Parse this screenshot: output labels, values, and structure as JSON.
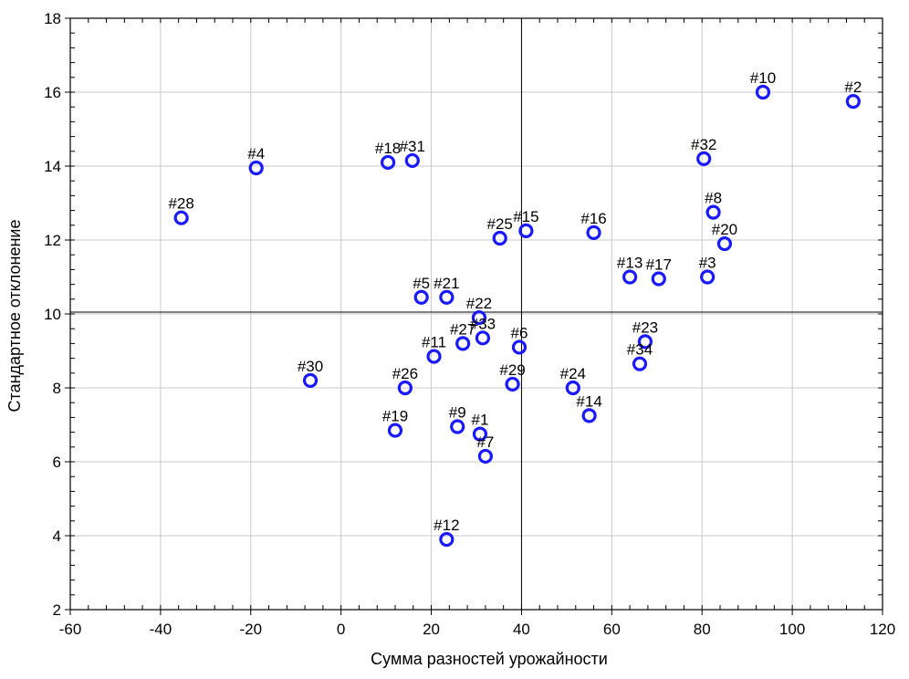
{
  "chart_data": {
    "type": "scatter",
    "title": "",
    "xlabel": "Сумма разностей урожайности",
    "ylabel": "Стандартное отклонение",
    "xlim": [
      -60,
      120
    ],
    "ylim": [
      2,
      18
    ],
    "xticks": [
      -60,
      -40,
      -20,
      0,
      20,
      40,
      60,
      80,
      100,
      120
    ],
    "yticks": [
      2,
      4,
      6,
      8,
      10,
      12,
      14,
      16,
      18
    ],
    "grid": true,
    "reference_lines": {
      "x": 40,
      "y": 10.05
    },
    "marker_color": "#1a1aff",
    "points": [
      {
        "label": "#1",
        "x": 30.8,
        "y": 6.75
      },
      {
        "label": "#2",
        "x": 113.5,
        "y": 15.75
      },
      {
        "label": "#3",
        "x": 81.2,
        "y": 11.0
      },
      {
        "label": "#4",
        "x": -18.8,
        "y": 13.95
      },
      {
        "label": "#5",
        "x": 17.8,
        "y": 10.45
      },
      {
        "label": "#6",
        "x": 39.5,
        "y": 9.1
      },
      {
        "label": "#7",
        "x": 32.0,
        "y": 6.15
      },
      {
        "label": "#8",
        "x": 82.5,
        "y": 12.75
      },
      {
        "label": "#9",
        "x": 25.8,
        "y": 6.95
      },
      {
        "label": "#10",
        "x": 93.5,
        "y": 16.0
      },
      {
        "label": "#11",
        "x": 20.6,
        "y": 8.85
      },
      {
        "label": "#12",
        "x": 23.4,
        "y": 3.9
      },
      {
        "label": "#13",
        "x": 64.0,
        "y": 11.0
      },
      {
        "label": "#14",
        "x": 55.0,
        "y": 7.25
      },
      {
        "label": "#15",
        "x": 41.0,
        "y": 12.25
      },
      {
        "label": "#16",
        "x": 56.0,
        "y": 12.2
      },
      {
        "label": "#17",
        "x": 70.4,
        "y": 10.95
      },
      {
        "label": "#18",
        "x": 10.4,
        "y": 14.1
      },
      {
        "label": "#19",
        "x": 12.0,
        "y": 6.85
      },
      {
        "label": "#20",
        "x": 85.0,
        "y": 11.9
      },
      {
        "label": "#21",
        "x": 23.4,
        "y": 10.45
      },
      {
        "label": "#22",
        "x": 30.6,
        "y": 9.9
      },
      {
        "label": "#23",
        "x": 67.4,
        "y": 9.25
      },
      {
        "label": "#24",
        "x": 51.4,
        "y": 8.0
      },
      {
        "label": "#25",
        "x": 35.2,
        "y": 12.05
      },
      {
        "label": "#26",
        "x": 14.2,
        "y": 8.0
      },
      {
        "label": "#27",
        "x": 27.0,
        "y": 9.2
      },
      {
        "label": "#28",
        "x": -35.4,
        "y": 12.6
      },
      {
        "label": "#29",
        "x": 38.0,
        "y": 8.1
      },
      {
        "label": "#30",
        "x": -6.8,
        "y": 8.2
      },
      {
        "label": "#31",
        "x": 15.8,
        "y": 14.15
      },
      {
        "label": "#32",
        "x": 80.4,
        "y": 14.2
      },
      {
        "label": "#33",
        "x": 31.4,
        "y": 9.35
      },
      {
        "label": "#34",
        "x": 66.2,
        "y": 8.65
      }
    ]
  }
}
